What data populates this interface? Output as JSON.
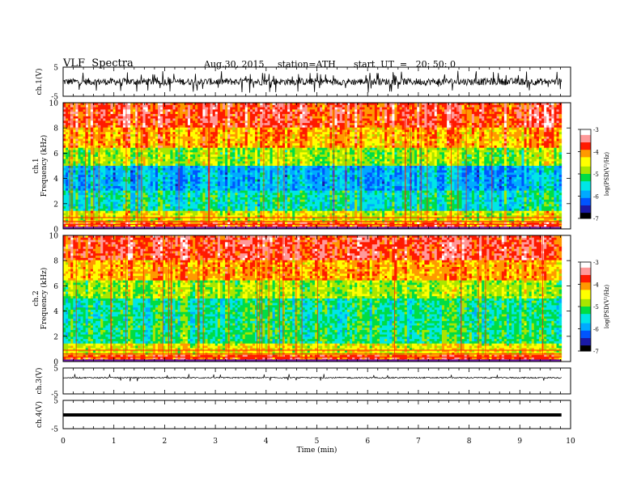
{
  "header": {
    "title": "VLF  Spectra",
    "date": "Aug.30, 2015",
    "station": "station=ATH",
    "start": "start  UT  =   20: 50: 0"
  },
  "colors": {
    "colormap": [
      "#000000",
      "#1a1aa8",
      "#0055ff",
      "#00aaff",
      "#00e6e6",
      "#00dd44",
      "#a8e600",
      "#ffff00",
      "#ff9900",
      "#ff1a00",
      "#ff9999",
      "#ffffff"
    ],
    "frame": "#000000"
  },
  "chart_data": [
    {
      "type": "line",
      "name": "ch1-waveform",
      "ylabel": "ch.1(V)",
      "ylim": [
        -5,
        5
      ],
      "yticks": [
        "5",
        "-5"
      ],
      "xlim": [
        0,
        10
      ],
      "note_level": "noise around 0 V, amplitude roughly +/-2 V"
    },
    {
      "type": "heatmap",
      "name": "ch1-spectrogram",
      "ylabel": "ch.1\nFrequency  (kHz)",
      "ylim": [
        0,
        10
      ],
      "yticks": [
        "0",
        "2",
        "4",
        "6",
        "8",
        "10"
      ],
      "xlim": [
        0,
        10
      ],
      "colorbar": {
        "label": "log(PSD(V²/Hz)",
        "range": [
          -7,
          -3
        ],
        "ticks": [
          "-3",
          "-4",
          "-5",
          "-6",
          "-7"
        ]
      }
    },
    {
      "type": "heatmap",
      "name": "ch2-spectrogram",
      "ylabel": "ch.2\nFrequency  (kHz)",
      "ylim": [
        0,
        10
      ],
      "yticks": [
        "0",
        "2",
        "4",
        "6",
        "8",
        "10"
      ],
      "xlim": [
        0,
        10
      ],
      "colorbar": {
        "label": "log(PSD(V²/Hz)",
        "range": [
          -7,
          -3
        ],
        "ticks": [
          "-3",
          "-4",
          "-5",
          "-6",
          "-7"
        ]
      }
    },
    {
      "type": "line",
      "name": "ch3-waveform",
      "ylabel": "ch.3(V)",
      "ylim": [
        -5,
        5
      ],
      "yticks": [
        "5",
        "-5"
      ],
      "xlim": [
        0,
        10
      ]
    },
    {
      "type": "line",
      "name": "ch4-waveform",
      "ylabel": "ch.4(V)",
      "ylim": [
        -5,
        5
      ],
      "yticks": [
        "5",
        "-5"
      ],
      "xlim": [
        0,
        10
      ],
      "xlabel": "Time  (min)",
      "xticks": [
        "0",
        "1",
        "2",
        "3",
        "4",
        "5",
        "6",
        "7",
        "8",
        "9",
        "10"
      ]
    }
  ]
}
